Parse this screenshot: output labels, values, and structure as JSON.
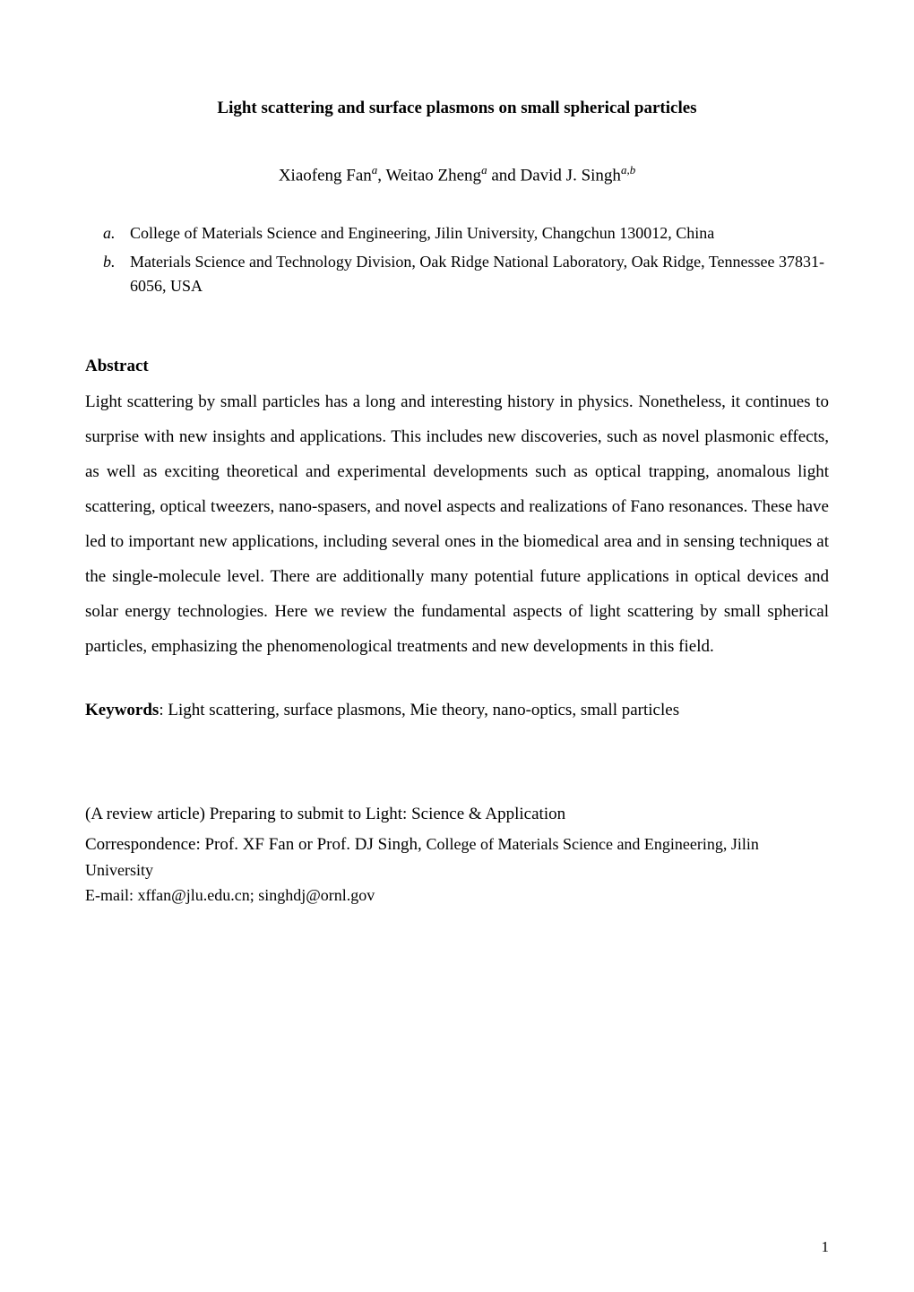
{
  "title": "Light scattering and surface plasmons on small spherical particles",
  "authors": {
    "name1": "Xiaofeng Fan",
    "aff1": "a",
    "sep1": ", ",
    "name2": "Weitao Zheng",
    "aff2": "a",
    "sep2": " and ",
    "name3": "David J. Singh",
    "aff3": "a,b"
  },
  "affiliations": [
    {
      "label": "a.",
      "text": "College of Materials Science and Engineering, Jilin University, Changchun 130012, China"
    },
    {
      "label": "b.",
      "text": "Materials Science and Technology Division, Oak Ridge National Laboratory, Oak Ridge, Tennessee 37831-6056, USA"
    }
  ],
  "abstract": {
    "heading": "Abstract",
    "body": "Light scattering by small particles has a long and interesting history in physics. Nonetheless, it continues to surprise with new insights and applications. This includes new discoveries, such as novel plasmonic effects, as well as exciting theoretical and experimental developments such as optical trapping, anomalous light scattering, optical tweezers, nano-spasers, and novel aspects and realizations of Fano resonances. These have led to important new applications, including several ones in the biomedical area and in sensing techniques at the single-molecule level. There are additionally many potential future applications in optical devices and solar energy technologies. Here we review the fundamental aspects of light scattering by small spherical particles, emphasizing the phenomenological treatments and new developments in this field."
  },
  "keywords": {
    "label": "Keywords",
    "sep": ": ",
    "text": "Light scattering, surface plasmons, Mie theory, nano-optics, small particles"
  },
  "footer": {
    "line1": "(A review article) Preparing to submit to Light: Science & Application",
    "line2_a": "Correspondence: Prof. XF Fan or Prof. DJ Singh, ",
    "line2_b": "College of Materials Science and Engineering, Jilin",
    "line3": "University",
    "line4": "E-mail: xffan@jlu.edu.cn; singhdj@ornl.gov"
  },
  "page_number": "1",
  "colors": {
    "background": "#ffffff",
    "text": "#000000"
  },
  "typography": {
    "font_family": "Times New Roman",
    "title_fontsize": 19,
    "body_fontsize": 19,
    "affiliation_fontsize": 18,
    "line_height": 2.05
  }
}
